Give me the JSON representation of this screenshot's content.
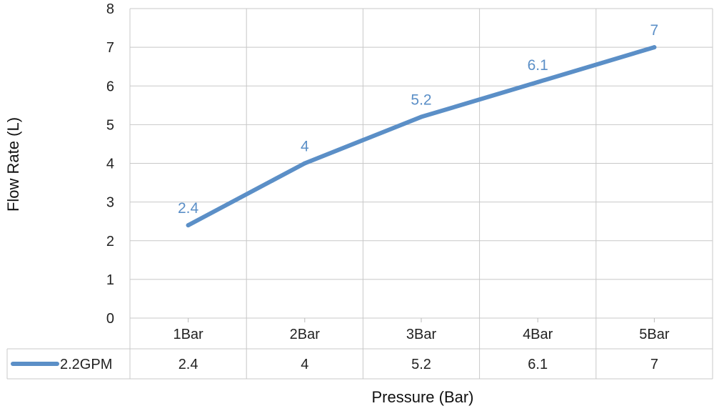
{
  "chart_data": {
    "type": "line",
    "categories": [
      "1Bar",
      "2Bar",
      "3Bar",
      "4Bar",
      "5Bar"
    ],
    "series": [
      {
        "name": "2.2GPM",
        "values": [
          2.4,
          4,
          5.2,
          6.1,
          7
        ],
        "color": "#5b8fc7"
      }
    ],
    "data_labels": [
      "2.4",
      "4",
      "5.2",
      "6.1",
      "7"
    ],
    "xlabel": "Pressure (Bar)",
    "ylabel": "Flow Rate (L)",
    "ylim": [
      0,
      8
    ],
    "yticks": [
      "0",
      "1",
      "2",
      "3",
      "4",
      "5",
      "6",
      "7",
      "8"
    ],
    "grid": true,
    "data_table": true,
    "legend": "left of data table"
  }
}
